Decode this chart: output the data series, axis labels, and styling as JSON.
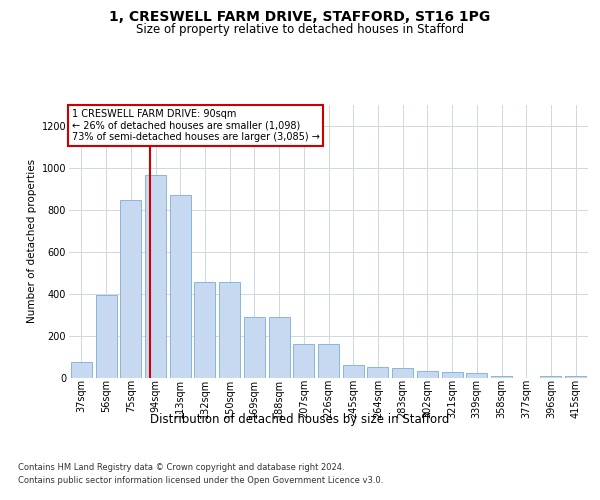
{
  "title_line1": "1, CRESWELL FARM DRIVE, STAFFORD, ST16 1PG",
  "title_line2": "Size of property relative to detached houses in Stafford",
  "xlabel": "Distribution of detached houses by size in Stafford",
  "ylabel": "Number of detached properties",
  "footer_line1": "Contains HM Land Registry data © Crown copyright and database right 2024.",
  "footer_line2": "Contains public sector information licensed under the Open Government Licence v3.0.",
  "categories": [
    "37sqm",
    "56sqm",
    "75sqm",
    "94sqm",
    "113sqm",
    "132sqm",
    "150sqm",
    "169sqm",
    "188sqm",
    "207sqm",
    "226sqm",
    "245sqm",
    "264sqm",
    "283sqm",
    "302sqm",
    "321sqm",
    "339sqm",
    "358sqm",
    "377sqm",
    "396sqm",
    "415sqm"
  ],
  "values": [
    75,
    395,
    845,
    965,
    870,
    455,
    455,
    290,
    290,
    160,
    160,
    60,
    50,
    45,
    30,
    25,
    20,
    5,
    0,
    5,
    5
  ],
  "bar_color": "#c6d9f0",
  "bar_edge_color": "#7bafd4",
  "grid_color": "#d0d8e0",
  "annotation_box_color": "#ffffff",
  "annotation_box_edge_color": "#cc0000",
  "vline_color": "#cc0000",
  "ylim": [
    0,
    1300
  ],
  "yticks": [
    0,
    200,
    400,
    600,
    800,
    1000,
    1200
  ],
  "title_fontsize": 10,
  "subtitle_fontsize": 8.5,
  "ylabel_fontsize": 7.5,
  "xlabel_fontsize": 8.5,
  "tick_fontsize": 7,
  "annotation_fontsize": 7,
  "footer_fontsize": 6
}
